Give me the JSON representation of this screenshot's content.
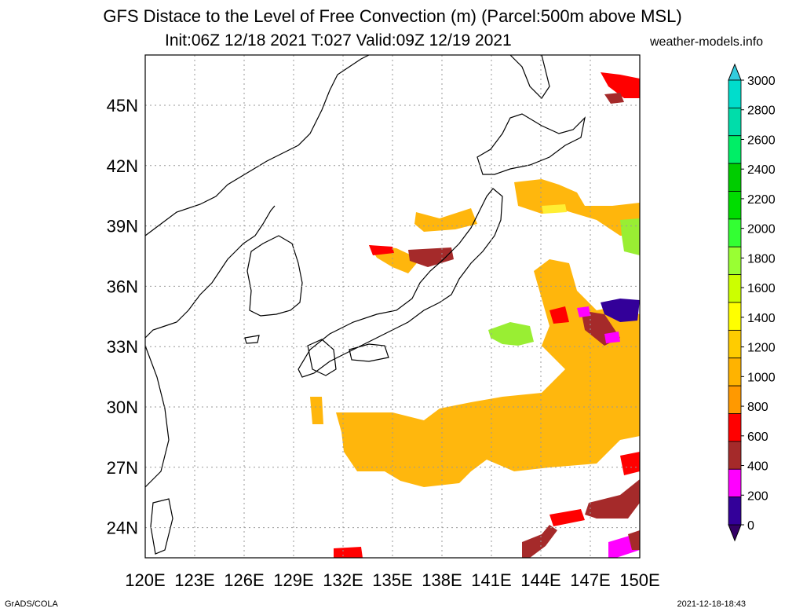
{
  "title": {
    "line1": "GFS Distace to the Level of Free Convection (m) (Parcel:500m above MSL)",
    "line2": "Init:06Z 12/18 2021 T:027 Valid:09Z 12/19 2021",
    "site": "weather-models.info"
  },
  "axes": {
    "lon_labels": [
      "120E",
      "123E",
      "126E",
      "129E",
      "132E",
      "135E",
      "138E",
      "141E",
      "144E",
      "147E",
      "150E"
    ],
    "lat_labels": [
      "24N",
      "27N",
      "30N",
      "33N",
      "36N",
      "39N",
      "42N",
      "45N"
    ],
    "lon_range": [
      120,
      150
    ],
    "lat_range": [
      22.5,
      47.5
    ]
  },
  "colorbar": {
    "labels": [
      "0",
      "200",
      "400",
      "600",
      "800",
      "1000",
      "1200",
      "1400",
      "1600",
      "1800",
      "2000",
      "2200",
      "2400",
      "2600",
      "2800",
      "3000"
    ],
    "colors": [
      "#330099",
      "#ff00ff",
      "#a52a2a",
      "#ff0000",
      "#ff9900",
      "#ffb300",
      "#ffcc00",
      "#ffff00",
      "#ccff00",
      "#99ff33",
      "#33ff33",
      "#00dd00",
      "#00cc00",
      "#00ee66",
      "#00ddaa",
      "#00ddcc"
    ],
    "over_color": "#33ccdd",
    "under_color": "#330066"
  },
  "footer": {
    "left": "GrADS/COLA",
    "right": "2021-12-18-18:43"
  }
}
